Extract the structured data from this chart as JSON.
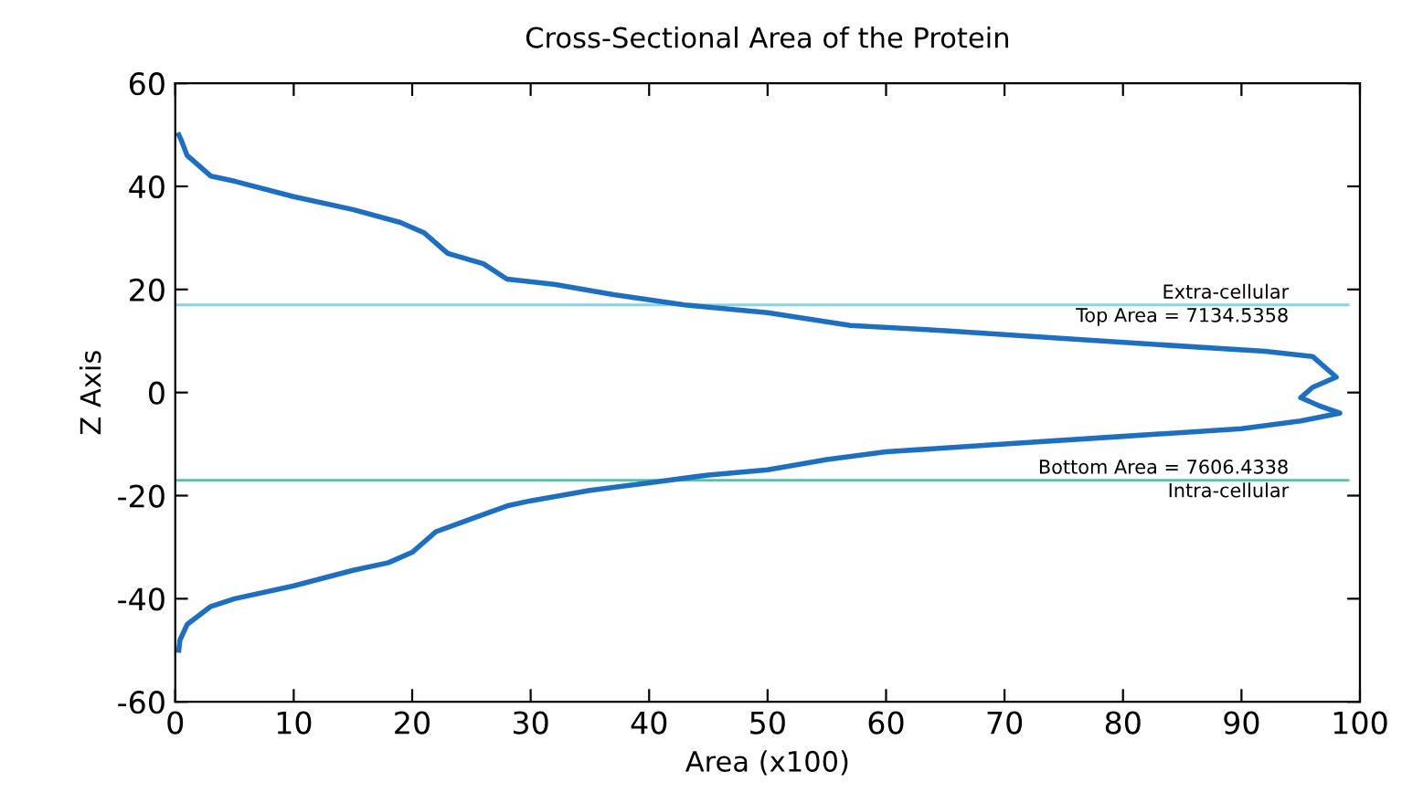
{
  "chart_data": {
    "type": "line",
    "title": "Cross-Sectional Area of the Protein",
    "xlabel": "Area (x100)",
    "ylabel": "Z Axis",
    "series": [
      {
        "color": "#1f6fc0",
        "x": [
          0.3,
          0.5,
          1,
          3,
          5,
          10,
          15,
          19,
          21,
          23,
          26,
          28,
          32,
          37,
          43,
          50,
          57,
          65,
          75,
          85,
          92,
          96,
          98,
          96,
          95,
          96.5,
          98.3,
          95,
          90,
          80,
          70,
          60,
          55,
          50,
          45,
          40,
          35,
          30,
          28,
          25,
          22,
          20,
          18,
          15,
          10,
          5,
          3,
          1,
          0.4,
          0.3
        ],
        "values": [
          50,
          49,
          46,
          42,
          41,
          38,
          35.5,
          33,
          31,
          27,
          25,
          22,
          21,
          19,
          17,
          15.5,
          13,
          12,
          10.5,
          9,
          8,
          7,
          3,
          1,
          -1,
          -2.5,
          -4,
          -5.5,
          -7,
          -8.5,
          -10,
          -11.5,
          -13,
          -15,
          -16,
          -17.5,
          -19,
          -21,
          -22,
          -24.5,
          -27,
          -31,
          -33,
          -34.5,
          -37.5,
          -40,
          -41.5,
          -45,
          -48,
          -50
        ]
      }
    ],
    "xlim": [
      0,
      100
    ],
    "ylim": [
      -60,
      60
    ],
    "xticks": [
      0,
      10,
      20,
      30,
      40,
      50,
      60,
      70,
      80,
      90,
      100
    ],
    "yticks": [
      -60,
      -40,
      -20,
      0,
      20,
      40,
      60
    ],
    "ref_lines": [
      {
        "axis": "y",
        "value": 17,
        "color": "#8ecfe0"
      },
      {
        "axis": "y",
        "value": -17,
        "color": "#5cbf9f"
      }
    ],
    "annotations": [
      "Extra-cellular",
      "Top Area = 7134.5358",
      "Bottom Area = 7606.4338",
      "Intra-cellular"
    ],
    "grid": false,
    "legend": false,
    "marker": "none",
    "line_style": "solid"
  }
}
